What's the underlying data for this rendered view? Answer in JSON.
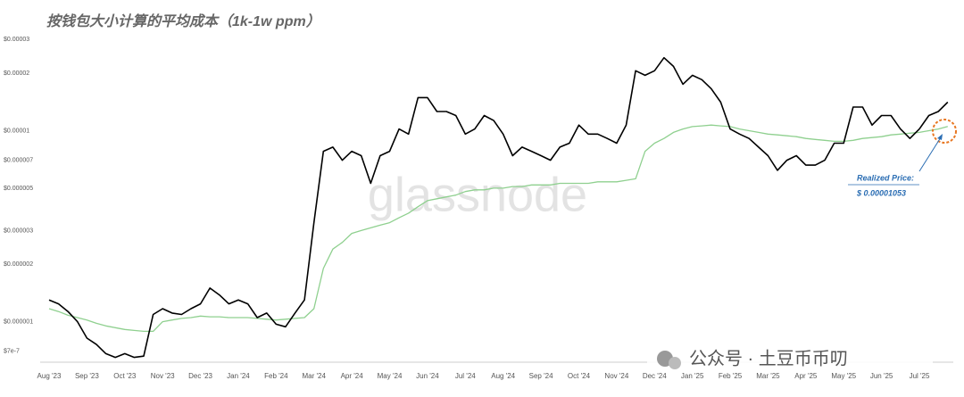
{
  "chart_data": {
    "type": "line",
    "title": "按钱包大小计算的平均成本（1k-1w ppm）",
    "watermark": "glassnode",
    "source_note": "公众号 · 土豆币币叨",
    "annotations": [
      "Realized Price:",
      "$ 0.00001053"
    ],
    "log_scale": true,
    "grid": false,
    "ylim": [
      6.2e-07,
      3.5e-05
    ],
    "yticks": [
      {
        "value": 3e-05,
        "label": "$0.00003"
      },
      {
        "value": 2e-05,
        "label": "$0.00002"
      },
      {
        "value": 1e-05,
        "label": "$0.00001"
      },
      {
        "value": 7e-06,
        "label": "$0.000007"
      },
      {
        "value": 5e-06,
        "label": "$0.000005"
      },
      {
        "value": 3e-06,
        "label": "$0.000003"
      },
      {
        "value": 2e-06,
        "label": "$0.000002"
      },
      {
        "value": 1e-06,
        "label": "$0.000001"
      },
      {
        "value": 7e-07,
        "label": "$7e-7"
      }
    ],
    "categories": [
      "Aug '23",
      null,
      null,
      null,
      "Sep '23",
      null,
      null,
      null,
      "Oct '23",
      null,
      null,
      null,
      "Nov '23",
      null,
      null,
      null,
      "Dec '23",
      null,
      null,
      null,
      "Jan '24",
      null,
      null,
      null,
      "Feb '24",
      null,
      null,
      null,
      "Mar '24",
      null,
      null,
      null,
      "Apr '24",
      null,
      null,
      null,
      "May '24",
      null,
      null,
      null,
      "Jun '24",
      null,
      null,
      null,
      "Jul '24",
      null,
      null,
      null,
      "Aug '24",
      null,
      null,
      null,
      "Sep '24",
      null,
      null,
      null,
      "Oct '24",
      null,
      null,
      null,
      "Nov '24",
      null,
      null,
      null,
      "Dec '24",
      null,
      null,
      null,
      "Jan '25",
      null,
      null,
      null,
      "Feb '25",
      null,
      null,
      null,
      "Mar '25",
      null,
      null,
      null,
      "Apr '25",
      null,
      null,
      null,
      "May '25",
      null,
      null,
      null,
      "Jun '25",
      null,
      null,
      null,
      "Jul '25",
      null,
      null,
      null
    ],
    "series": [
      {
        "color": "#000000",
        "values": [
          1.3e-06,
          1.24e-06,
          1.13e-06,
          1e-06,
          8.2e-07,
          7.6e-07,
          6.8e-07,
          6.5e-07,
          6.8e-07,
          6.5e-07,
          6.6e-07,
          1.09e-06,
          1.17e-06,
          1.11e-06,
          1.09e-06,
          1.17e-06,
          1.24e-06,
          1.5e-06,
          1.38e-06,
          1.24e-06,
          1.3e-06,
          1.24e-06,
          1.05e-06,
          1.11e-06,
          9.7e-07,
          9.4e-07,
          1.11e-06,
          1.3e-06,
          3.3e-06,
          7.8e-06,
          8.2e-06,
          7e-06,
          7.8e-06,
          7.4e-06,
          5.3e-06,
          7.4e-06,
          7.8e-06,
          1.02e-05,
          9.6e-06,
          1.49e-05,
          1.49e-05,
          1.26e-05,
          1.26e-05,
          1.2e-05,
          9.6e-06,
          1.02e-05,
          1.2e-05,
          1.13e-05,
          9.6e-06,
          7.4e-06,
          8.2e-06,
          7.8e-06,
          7.4e-06,
          7e-06,
          8.2e-06,
          8.6e-06,
          1.07e-05,
          9.6e-06,
          9.6e-06,
          9.1e-06,
          8.6e-06,
          1.07e-05,
          2.06e-05,
          1.95e-05,
          2.06e-05,
          2.41e-05,
          2.17e-05,
          1.75e-05,
          1.95e-05,
          1.85e-05,
          1.66e-05,
          1.41e-05,
          1.02e-05,
          9.6e-06,
          9.1e-06,
          8.2e-06,
          7.4e-06,
          6.2e-06,
          7e-06,
          7.4e-06,
          6.6e-06,
          6.6e-06,
          7e-06,
          8.6e-06,
          8.6e-06,
          1.33e-05,
          1.33e-05,
          1.07e-05,
          1.2e-05,
          1.2e-05,
          1.02e-05,
          9.1e-06,
          1.02e-05,
          1.2e-05,
          1.26e-05,
          1.41e-05
        ]
      },
      {
        "color": "#8fd08f",
        "values": [
          1.17e-06,
          1.13e-06,
          1.08e-06,
          1.05e-06,
          1.02e-06,
          9.8e-07,
          9.5e-07,
          9.3e-07,
          9.1e-07,
          9e-07,
          8.9e-07,
          8.9e-07,
          1e-06,
          1.02e-06,
          1.04e-06,
          1.05e-06,
          1.07e-06,
          1.06e-06,
          1.06e-06,
          1.05e-06,
          1.05e-06,
          1.05e-06,
          1.04e-06,
          1.03e-06,
          1.02e-06,
          1.03e-06,
          1.04e-06,
          1.05e-06,
          1.17e-06,
          1.9e-06,
          2.4e-06,
          2.6e-06,
          2.9e-06,
          3e-06,
          3.1e-06,
          3.2e-06,
          3.3e-06,
          3.5e-06,
          3.7e-06,
          4e-06,
          4.3e-06,
          4.4e-06,
          4.5e-06,
          4.6e-06,
          4.8e-06,
          4.9e-06,
          4.9e-06,
          5e-06,
          5e-06,
          5.1e-06,
          5.1e-06,
          5.2e-06,
          5.2e-06,
          5.2e-06,
          5.3e-06,
          5.3e-06,
          5.3e-06,
          5.3e-06,
          5.4e-06,
          5.4e-06,
          5.4e-06,
          5.5e-06,
          5.6e-06,
          7.8e-06,
          8.6e-06,
          9.1e-06,
          9.8e-06,
          1.02e-05,
          1.05e-05,
          1.06e-05,
          1.07e-05,
          1.06e-05,
          1.05e-05,
          1.02e-05,
          1e-05,
          9.8e-06,
          9.6e-06,
          9.5e-06,
          9.4e-06,
          9.3e-06,
          9.1e-06,
          9e-06,
          8.9e-06,
          8.8e-06,
          8.8e-06,
          8.9e-06,
          9.1e-06,
          9.2e-06,
          9.3e-06,
          9.5e-06,
          9.6e-06,
          9.7e-06,
          9.8e-06,
          1e-05,
          1.02e-05,
          1.053e-05
        ]
      }
    ]
  }
}
